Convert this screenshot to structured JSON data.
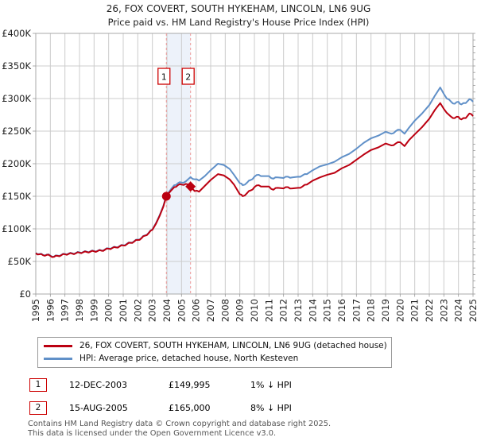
{
  "title": {
    "line1": "26, FOX COVERT, SOUTH HYKEHAM, LINCOLN, LN6 9UG",
    "line2": "Price paid vs. HM Land Registry's House Price Index (HPI)"
  },
  "legend": {
    "series1_label": "26, FOX COVERT, SOUTH HYKEHAM, LINCOLN, LN6 9UG (detached house)",
    "series2_label": "HPI: Average price, detached house, North Kesteven"
  },
  "sales": [
    {
      "num": "1",
      "date": "12-DEC-2003",
      "price": "£149,995",
      "hpi": "1% ↓ HPI"
    },
    {
      "num": "2",
      "date": "15-AUG-2005",
      "price": "£165,000",
      "hpi": "8% ↓ HPI"
    }
  ],
  "footer": {
    "line1": "Contains HM Land Registry data © Crown copyright and database right 2025.",
    "line2": "This data is licensed under the Open Government Licence v3.0."
  },
  "colors": {
    "property_line": "#bb0011",
    "hpi_line": "#6090c8",
    "band": "#edf2fa",
    "dashed_marker": "#ef9a9a",
    "grid": "#cccccc",
    "border": "#a8a8a8",
    "annotation_red": "#cc0000",
    "axis_text": "#222222"
  },
  "chart_data": {
    "type": "line",
    "title": "Price paid vs. HM Land Registry's House Price Index (HPI)",
    "xlabel": "",
    "ylabel": "",
    "x_range": [
      1995,
      2025
    ],
    "y_range": [
      0,
      400000
    ],
    "grid": true,
    "legend_position": "bottom",
    "y_ticks": [
      {
        "v": 0,
        "label": "£0"
      },
      {
        "v": 50000,
        "label": "£50K"
      },
      {
        "v": 100000,
        "label": "£100K"
      },
      {
        "v": 150000,
        "label": "£150K"
      },
      {
        "v": 200000,
        "label": "£200K"
      },
      {
        "v": 250000,
        "label": "£250K"
      },
      {
        "v": 300000,
        "label": "£300K"
      },
      {
        "v": 350000,
        "label": "£350K"
      },
      {
        "v": 400000,
        "label": "£400K"
      }
    ],
    "x_ticks": [
      1995,
      1996,
      1997,
      1998,
      1999,
      2000,
      2001,
      2002,
      2003,
      2004,
      2005,
      2006,
      2007,
      2008,
      2009,
      2010,
      2011,
      2012,
      2013,
      2014,
      2015,
      2016,
      2017,
      2018,
      2019,
      2020,
      2021,
      2022,
      2023,
      2024,
      2025
    ],
    "x": [
      1995,
      1995.25,
      1995.5,
      1995.75,
      1996,
      1996.25,
      1996.5,
      1996.75,
      1997,
      1997.25,
      1997.5,
      1997.75,
      1998,
      1998.25,
      1998.5,
      1998.75,
      1999,
      1999.25,
      1999.5,
      1999.75,
      2000,
      2000.25,
      2000.5,
      2000.75,
      2001,
      2001.25,
      2001.5,
      2001.75,
      2002,
      2002.25,
      2002.5,
      2002.75,
      2003,
      2003.25,
      2003.5,
      2003.75,
      2003.96,
      2004.25,
      2004.5,
      2004.75,
      2005,
      2005.3,
      2005.62,
      2005.9,
      2006.2,
      2006.6,
      2007,
      2007.5,
      2007.9,
      2008.3,
      2008.6,
      2009,
      2009.2,
      2009.5,
      2009.75,
      2010,
      2010.3,
      2010.6,
      2011,
      2011.3,
      2011.6,
      2012,
      2012.3,
      2012.6,
      2013,
      2013.3,
      2013.6,
      2014,
      2014.5,
      2015,
      2015.5,
      2016,
      2016.5,
      2017,
      2017.5,
      2018,
      2018.5,
      2019,
      2019.4,
      2019.7,
      2020,
      2020.3,
      2020.6,
      2021,
      2021.5,
      2022,
      2022.4,
      2022.75,
      2023,
      2023.2,
      2023.5,
      2023.75,
      2024,
      2024.2,
      2024.5,
      2024.75,
      2025
    ],
    "series": [
      {
        "name": "HPI: Average price, detached house, North Kesteven",
        "color_key": "hpi_line",
        "values": [
          63000,
          61500,
          60000,
          60500,
          59000,
          57500,
          59000,
          60000,
          61500,
          62000,
          62500,
          63000,
          64000,
          64500,
          65000,
          65500,
          66000,
          66500,
          67000,
          68500,
          70000,
          71000,
          72000,
          73500,
          75000,
          77000,
          79000,
          81000,
          83500,
          86000,
          90000,
          94000,
          99000,
          109000,
          121000,
          135000,
          151500,
          160000,
          167000,
          170000,
          171000,
          173000,
          179500,
          176000,
          174000,
          181000,
          190000,
          200000,
          198000,
          192000,
          183000,
          170000,
          167000,
          171000,
          175000,
          180000,
          183000,
          181000,
          181000,
          177000,
          179000,
          178000,
          180000,
          179000,
          180000,
          182000,
          184000,
          190000,
          196000,
          199000,
          203000,
          210000,
          215000,
          223000,
          232000,
          239000,
          243000,
          249000,
          246000,
          250000,
          252000,
          246000,
          255000,
          266000,
          277000,
          290000,
          305000,
          317000,
          307000,
          300000,
          295000,
          292000,
          295000,
          291000,
          293000,
          299000,
          295000
        ]
      },
      {
        "name": "26, FOX COVERT, SOUTH HYKEHAM, LINCOLN, LN6 9UG (detached house)",
        "color_key": "property_line",
        "values": [
          62500,
          61000,
          59500,
          60000,
          58500,
          57000,
          58500,
          59500,
          61000,
          61500,
          62000,
          62500,
          63500,
          64000,
          64500,
          65000,
          65500,
          66000,
          66500,
          68000,
          69500,
          70500,
          71500,
          73000,
          74500,
          76500,
          78500,
          80500,
          83000,
          85500,
          89500,
          93500,
          98500,
          108000,
          120000,
          134000,
          149995,
          158000,
          164000,
          167000,
          168000,
          169000,
          165000,
          158000,
          157000,
          166000,
          175000,
          184000,
          182000,
          176000,
          168000,
          153000,
          150000,
          155000,
          159000,
          164000,
          167000,
          165000,
          165000,
          160000,
          163000,
          162000,
          164000,
          162000,
          163000,
          165000,
          168000,
          174000,
          179000,
          183000,
          186000,
          193000,
          198000,
          206000,
          214000,
          221000,
          225000,
          231000,
          228000,
          231000,
          233000,
          227000,
          236000,
          245000,
          256000,
          269000,
          283000,
          293000,
          284000,
          278000,
          272000,
          270000,
          272000,
          268000,
          270000,
          277000,
          273000
        ]
      }
    ],
    "sale_markers": [
      {
        "x": 2003.96,
        "y": 149995,
        "shape": "circle",
        "label": "1"
      },
      {
        "x": 2005.62,
        "y": 165000,
        "shape": "diamond",
        "label": "2"
      }
    ],
    "shaded_span": [
      2003.96,
      2005.62
    ],
    "annotations": [
      {
        "label": "1",
        "x": 2003.96
      },
      {
        "label": "2",
        "x": 2005.62
      }
    ]
  }
}
